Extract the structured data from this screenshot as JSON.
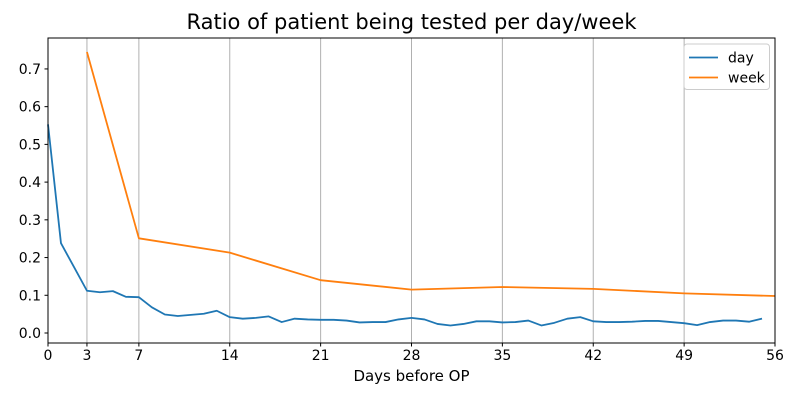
{
  "chart_data": {
    "type": "line",
    "title": "Ratio of patient being tested per day/week",
    "xlabel": "Days before OP",
    "ylabel": "",
    "xlim": [
      0,
      56
    ],
    "ylim": [
      -0.0265,
      0.782
    ],
    "x_ticks": [
      0,
      3,
      7,
      14,
      21,
      28,
      35,
      42,
      49,
      56
    ],
    "y_ticks": [
      0.0,
      0.1,
      0.2,
      0.3,
      0.4,
      0.5,
      0.6,
      0.7
    ],
    "grid": {
      "vertical": true,
      "horizontal": false,
      "color": "#b0b0b0"
    },
    "legend": {
      "position": "upper-right",
      "border_color": "#cccccc",
      "background": "#ffffff"
    },
    "spine_color": "#000000",
    "series": [
      {
        "name": "day",
        "color": "#1f77b4",
        "x": [
          0,
          1,
          2,
          3,
          4,
          5,
          6,
          7,
          8,
          9,
          10,
          11,
          12,
          13,
          14,
          15,
          16,
          17,
          18,
          19,
          20,
          21,
          22,
          23,
          24,
          25,
          26,
          27,
          28,
          29,
          30,
          31,
          32,
          33,
          34,
          35,
          36,
          37,
          38,
          39,
          40,
          41,
          42,
          43,
          44,
          45,
          46,
          47,
          48,
          49,
          50,
          51,
          52,
          53,
          54,
          55
        ],
        "y": [
          0.553,
          0.238,
          0.175,
          0.112,
          0.108,
          0.111,
          0.096,
          0.095,
          0.068,
          0.049,
          0.045,
          0.048,
          0.051,
          0.059,
          0.042,
          0.038,
          0.04,
          0.044,
          0.029,
          0.038,
          0.036,
          0.035,
          0.035,
          0.033,
          0.028,
          0.029,
          0.029,
          0.036,
          0.04,
          0.036,
          0.024,
          0.02,
          0.024,
          0.031,
          0.031,
          0.028,
          0.029,
          0.033,
          0.02,
          0.027,
          0.038,
          0.042,
          0.031,
          0.029,
          0.029,
          0.03,
          0.032,
          0.032,
          0.029,
          0.026,
          0.021,
          0.029,
          0.033,
          0.033,
          0.03,
          0.038
        ]
      },
      {
        "name": "week",
        "color": "#ff7f0e",
        "x": [
          3,
          7,
          14,
          21,
          28,
          35,
          42,
          49,
          56
        ],
        "y": [
          0.745,
          0.251,
          0.213,
          0.14,
          0.115,
          0.122,
          0.117,
          0.105,
          0.098
        ]
      }
    ]
  }
}
